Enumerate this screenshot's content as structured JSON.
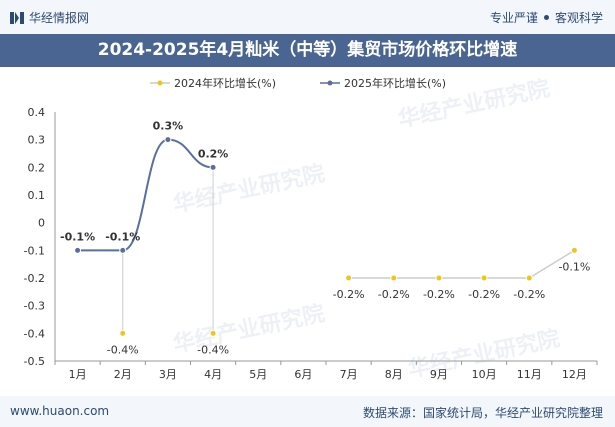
{
  "header": {
    "brand": "华经情报网",
    "slogan_left": "专业严谨",
    "slogan_right": "客观科学"
  },
  "footer": {
    "url": "www.huaon.com",
    "source": "数据来源：国家统计局，华经产业研究院整理"
  },
  "colors": {
    "series_2024": "#f0c419",
    "series_2025": "#5a6ea0",
    "title_bg": "#4a6591"
  },
  "chart_data": {
    "type": "line",
    "title": "2024-2025年4月籼米（中等）集贸市场价格环比增速",
    "categories": [
      "1月",
      "2月",
      "3月",
      "4月",
      "5月",
      "6月",
      "7月",
      "8月",
      "9月",
      "10月",
      "11月",
      "12月"
    ],
    "ylim": [
      -0.5,
      0.4
    ],
    "yticks": [
      0.4,
      0.3,
      0.2,
      0.1,
      0,
      -0.1,
      -0.2,
      -0.3,
      -0.4,
      -0.5
    ],
    "ytick_labels": [
      "0.4",
      "0.3",
      "0.2",
      "0.1",
      "0",
      "-0.1",
      "-0.2",
      "-0.3",
      "-0.4",
      "-0.5"
    ],
    "grid": false,
    "legend_position": "top-left",
    "series": [
      {
        "name": "2024年环比增长(%)",
        "color": "#f0c419",
        "line_color": "#cccccc",
        "values": [
          null,
          -0.4,
          null,
          -0.4,
          null,
          null,
          -0.2,
          -0.2,
          -0.2,
          -0.2,
          -0.2,
          -0.1
        ],
        "labels": [
          "",
          "-0.4%",
          "",
          "-0.4%",
          "",
          "",
          "-0.2%",
          "-0.2%",
          "-0.2%",
          "-0.2%",
          "-0.2%",
          "-0.1%"
        ]
      },
      {
        "name": "2025年环比增长(%)",
        "color": "#5a6ea0",
        "line_color": "#5a6ea0",
        "values": [
          -0.1,
          -0.1,
          0.3,
          0.2,
          null,
          null,
          null,
          null,
          null,
          null,
          null,
          null
        ],
        "labels": [
          "-0.1%",
          "-0.1%",
          "0.3%",
          "0.2%",
          "",
          "",
          "",
          "",
          "",
          "",
          "",
          ""
        ]
      }
    ]
  }
}
